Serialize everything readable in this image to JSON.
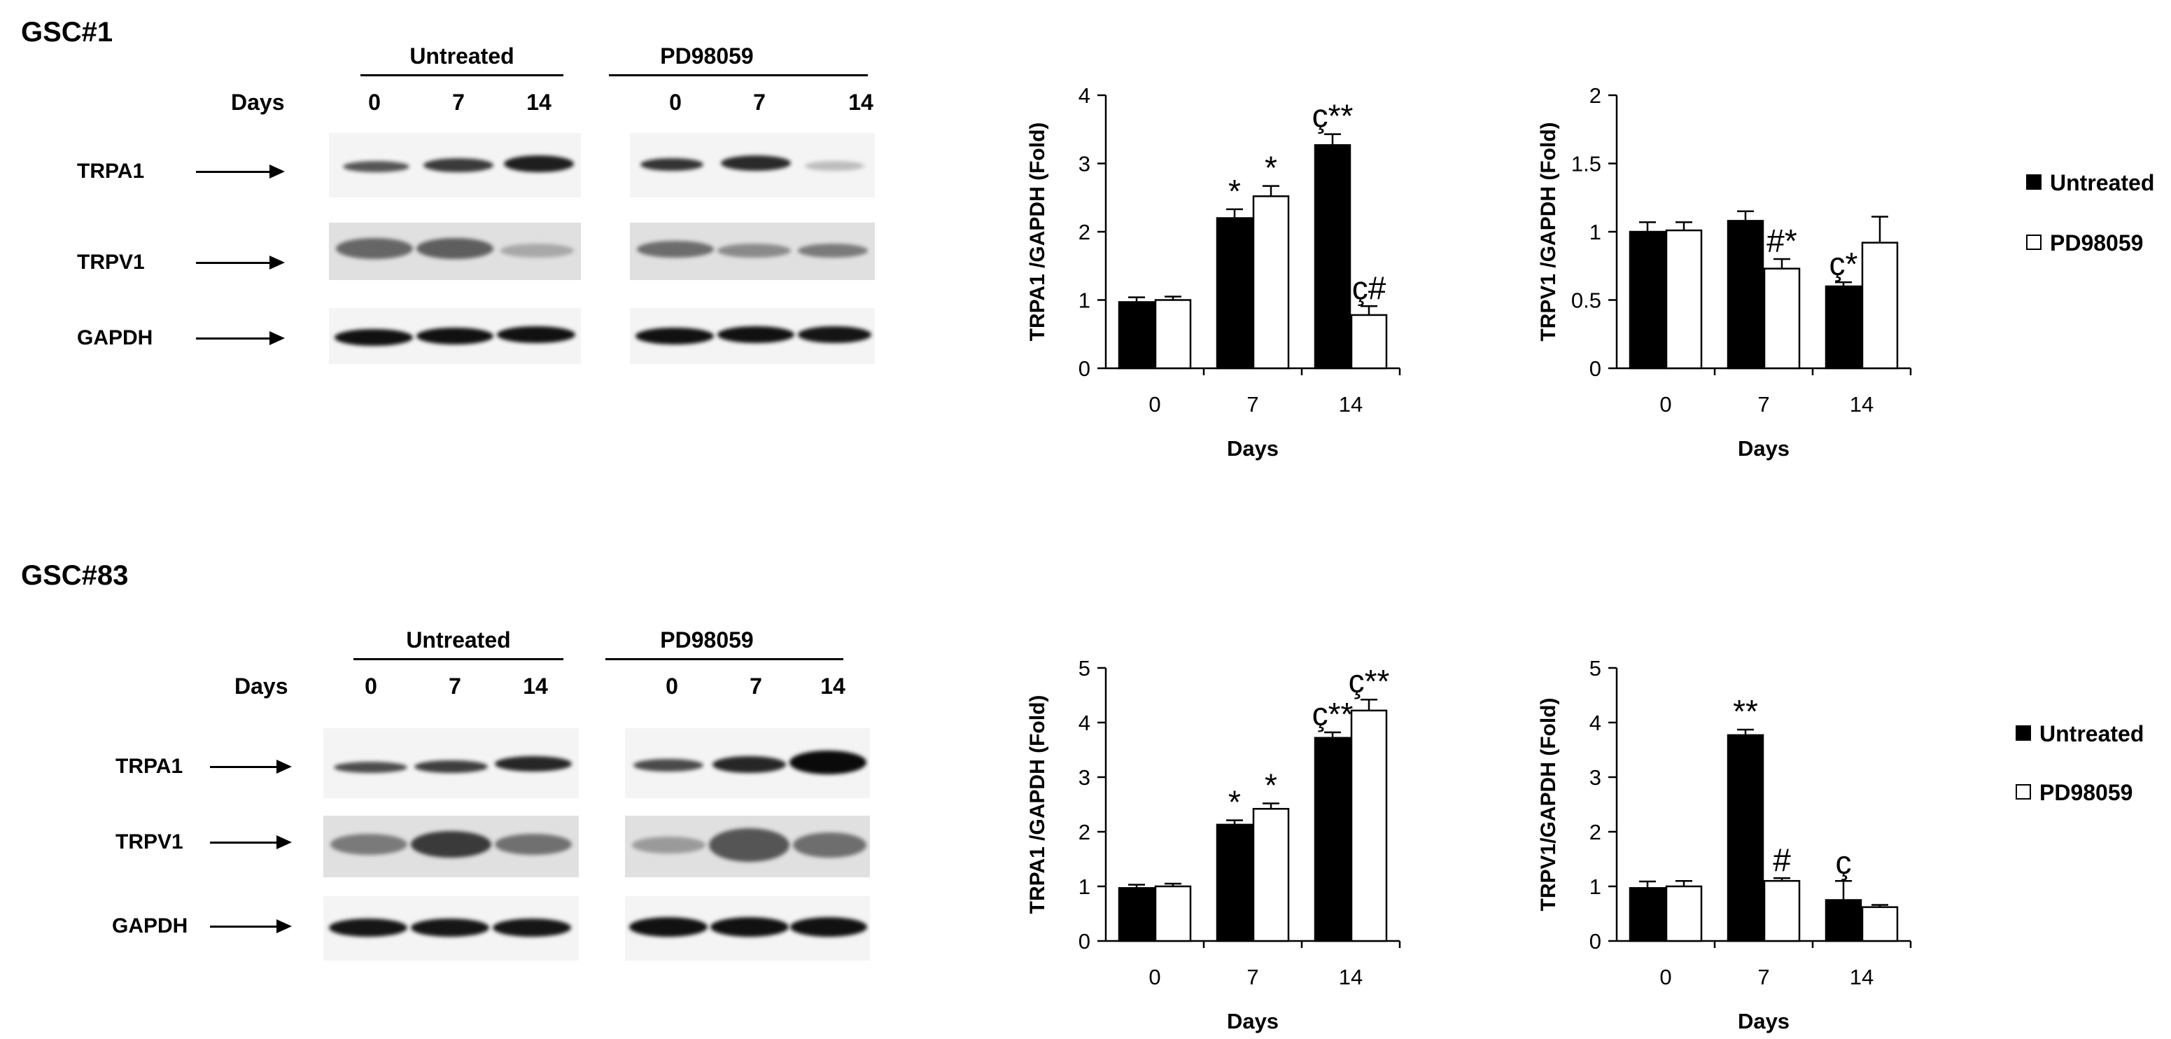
{
  "panels": [
    {
      "title": "GSC#1",
      "blot": {
        "conditions": [
          "Untreated",
          "PD98059"
        ],
        "days_label": "Days",
        "days": [
          "0",
          "7",
          "14"
        ],
        "proteins": [
          "TRPA1",
          "TRPV1",
          "GAPDH"
        ]
      },
      "charts": [
        {
          "type": "bar",
          "ylabel": "TRPA1 /GAPDH (Fold)",
          "xlabel": "Days",
          "categories": [
            "0",
            "7",
            "14"
          ],
          "ylim": [
            0,
            4
          ],
          "yticks": [
            "0",
            "1",
            "2",
            "3",
            "4"
          ],
          "series": [
            {
              "name": "Untreated",
              "color": "#000000",
              "values": [
                0.97,
                2.2,
                3.27
              ],
              "errors": [
                0.07,
                0.13,
                0.16
              ]
            },
            {
              "name": "PD98059",
              "color": "#ffffff",
              "values": [
                1.0,
                2.52,
                0.78
              ],
              "errors": [
                0.05,
                0.15,
                0.13
              ]
            }
          ],
          "annotations": [
            {
              "series": 0,
              "category": 1,
              "text": "*"
            },
            {
              "series": 1,
              "category": 1,
              "text": "*"
            },
            {
              "series": 0,
              "category": 2,
              "text": "ç**"
            },
            {
              "series": 1,
              "category": 2,
              "text": "ç#"
            }
          ]
        },
        {
          "type": "bar",
          "ylabel": "TRPV1 /GAPDH (Fold)",
          "xlabel": "Days",
          "categories": [
            "0",
            "7",
            "14"
          ],
          "ylim": [
            0,
            2
          ],
          "yticks": [
            "0",
            "0.5",
            "1",
            "1.5",
            "2"
          ],
          "series": [
            {
              "name": "Untreated",
              "color": "#000000",
              "values": [
                1.0,
                1.08,
                0.6
              ],
              "errors": [
                0.07,
                0.07,
                0.03
              ]
            },
            {
              "name": "PD98059",
              "color": "#ffffff",
              "values": [
                1.01,
                0.73,
                0.92
              ],
              "errors": [
                0.06,
                0.07,
                0.19
              ]
            }
          ],
          "annotations": [
            {
              "series": 1,
              "category": 1,
              "text": "#*"
            },
            {
              "series": 0,
              "category": 2,
              "text": "ç*"
            }
          ],
          "legend": [
            "Untreated",
            "PD98059"
          ]
        }
      ]
    },
    {
      "title": "GSC#83",
      "blot": {
        "conditions": [
          "Untreated",
          "PD98059"
        ],
        "days_label": "Days",
        "days": [
          "0",
          "7",
          "14"
        ],
        "proteins": [
          "TRPA1",
          "TRPV1",
          "GAPDH"
        ]
      },
      "charts": [
        {
          "type": "bar",
          "ylabel": "TRPA1 /GAPDH (Fold)",
          "xlabel": "Days",
          "categories": [
            "0",
            "7",
            "14"
          ],
          "ylim": [
            0,
            5
          ],
          "yticks": [
            "0",
            "1",
            "2",
            "3",
            "4",
            "5"
          ],
          "series": [
            {
              "name": "Untreated",
              "color": "#000000",
              "values": [
                0.97,
                2.13,
                3.72
              ],
              "errors": [
                0.06,
                0.08,
                0.1
              ]
            },
            {
              "name": "PD98059",
              "color": "#ffffff",
              "values": [
                1.0,
                2.42,
                4.22
              ],
              "errors": [
                0.05,
                0.1,
                0.2
              ]
            }
          ],
          "annotations": [
            {
              "series": 0,
              "category": 1,
              "text": "*"
            },
            {
              "series": 1,
              "category": 1,
              "text": "*"
            },
            {
              "series": 0,
              "category": 2,
              "text": "ç**"
            },
            {
              "series": 1,
              "category": 2,
              "text": "ç**"
            }
          ]
        },
        {
          "type": "bar",
          "ylabel": "TRPV1/GAPDH (Fold)",
          "xlabel": "Days",
          "categories": [
            "0",
            "7",
            "14"
          ],
          "ylim": [
            0,
            5
          ],
          "yticks": [
            "0",
            "1",
            "2",
            "3",
            "4",
            "5"
          ],
          "series": [
            {
              "name": "Untreated",
              "color": "#000000",
              "values": [
                0.97,
                3.77,
                0.75
              ],
              "errors": [
                0.12,
                0.1,
                0.35
              ]
            },
            {
              "name": "PD98059",
              "color": "#ffffff",
              "values": [
                1.0,
                1.1,
                0.62
              ],
              "errors": [
                0.1,
                0.05,
                0.04
              ]
            }
          ],
          "annotations": [
            {
              "series": 0,
              "category": 1,
              "text": "**"
            },
            {
              "series": 1,
              "category": 1,
              "text": "#"
            },
            {
              "series": 0,
              "category": 2,
              "text": "ç"
            }
          ],
          "legend": [
            "Untreated",
            "PD98059"
          ]
        }
      ]
    }
  ]
}
